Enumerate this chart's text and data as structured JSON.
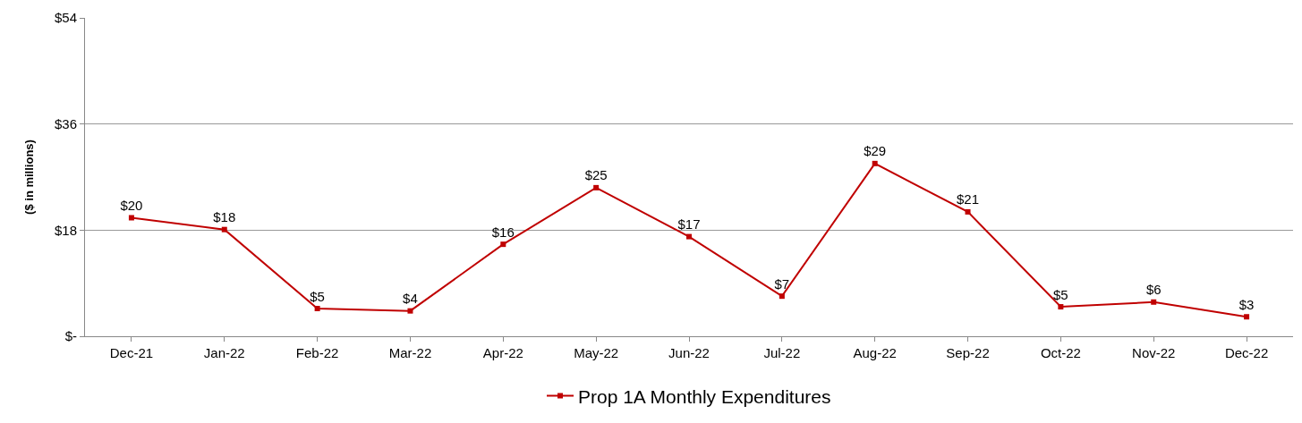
{
  "chart_data": {
    "type": "line",
    "ylabel": "($ in millions)",
    "categories": [
      "Dec-21",
      "Jan-22",
      "Feb-22",
      "Mar-22",
      "Apr-22",
      "May-22",
      "Jun-22",
      "Jul-22",
      "Aug-22",
      "Sep-22",
      "Oct-22",
      "Nov-22",
      "Dec-22"
    ],
    "series": [
      {
        "name": "Prop 1A Monthly Expenditures",
        "color": "#c00000",
        "values": [
          20.1,
          18.1,
          4.7,
          4.3,
          15.6,
          25.2,
          16.9,
          6.8,
          29.3,
          21.1,
          5,
          5.8,
          3.3
        ],
        "value_labels": [
          "$20",
          "$18",
          "$5",
          "$4",
          "$16",
          "$25",
          "$17",
          "$7",
          "$29",
          "$21",
          "$5",
          "$6",
          "$3"
        ]
      }
    ],
    "ylim": [
      0,
      54
    ],
    "yticks": [
      {
        "value": 0,
        "label": "$-"
      },
      {
        "value": 18,
        "label": "$18"
      },
      {
        "value": 36,
        "label": "$36"
      },
      {
        "value": 54,
        "label": "$54"
      }
    ],
    "grid": "y",
    "legend": "bottom",
    "marker": "square",
    "line_style": "solid"
  }
}
